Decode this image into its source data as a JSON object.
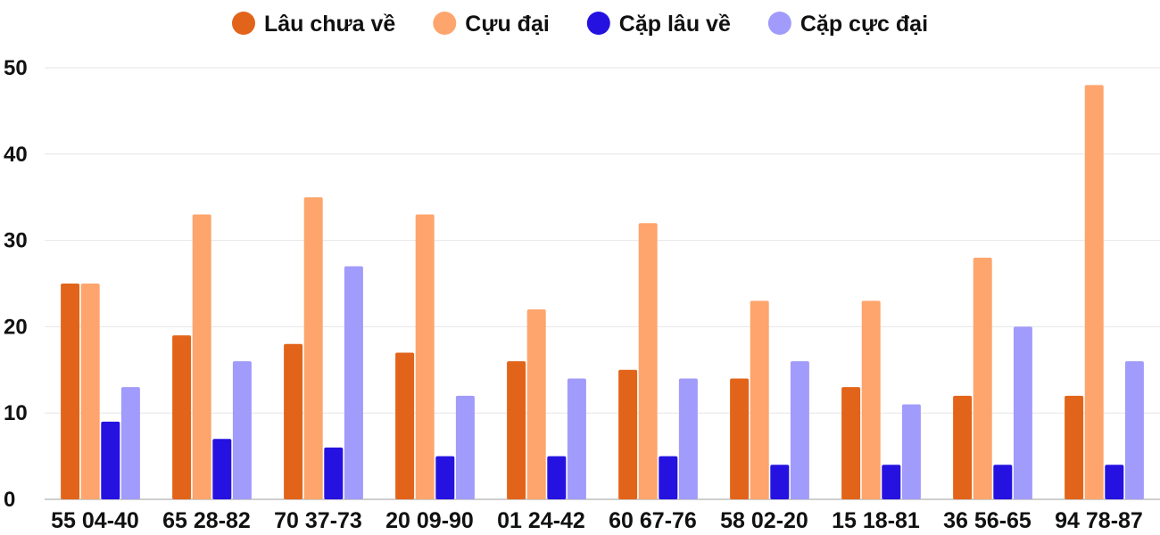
{
  "chart_data": {
    "type": "bar",
    "legend_position": "top",
    "grid": true,
    "ylim": [
      0,
      50
    ],
    "yticks": [
      0,
      10,
      20,
      30,
      40,
      50
    ],
    "categories": [
      "55 04-40",
      "65 28-82",
      "70 37-73",
      "20 09-90",
      "01 24-42",
      "60 67-76",
      "58 02-20",
      "15 18-81",
      "36 56-65",
      "94 78-87"
    ],
    "series": [
      {
        "name": "Lâu chưa về",
        "color": "#e2641a",
        "values": [
          25,
          19,
          18,
          17,
          16,
          15,
          14,
          13,
          12,
          12
        ]
      },
      {
        "name": "Cựu đại",
        "color": "#fda56d",
        "values": [
          25,
          33,
          35,
          33,
          22,
          32,
          23,
          23,
          28,
          48
        ]
      },
      {
        "name": "Cặp lâu về",
        "color": "#2612e0",
        "values": [
          9,
          7,
          6,
          5,
          5,
          5,
          4,
          4,
          4,
          4
        ]
      },
      {
        "name": "Cặp cực đại",
        "color": "#a19bfb",
        "values": [
          13,
          16,
          27,
          12,
          14,
          14,
          16,
          11,
          20,
          16
        ]
      }
    ]
  }
}
